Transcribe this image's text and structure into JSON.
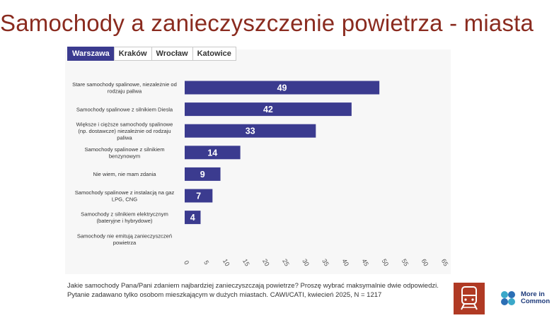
{
  "title": "Samochody a zanieczyszczenie powietrza - miasta",
  "tabs": [
    {
      "label": "Warszawa",
      "active": true
    },
    {
      "label": "Kraków",
      "active": false
    },
    {
      "label": "Wrocław",
      "active": false
    },
    {
      "label": "Katowice",
      "active": false
    }
  ],
  "chart_data": {
    "type": "bar",
    "orientation": "horizontal",
    "categories": [
      [
        "Stare samochody spalinowe, niezależnie od",
        "rodzaju paliwa"
      ],
      [
        "Samochody spalinowe z silnikiem Diesla"
      ],
      [
        "Większe i cięższe samochody spalinowe",
        "(np. dostawcze) niezależnie od rodzaju",
        "paliwa"
      ],
      [
        "Samochody spalinowe z silnikiem",
        "benzynowym"
      ],
      [
        "Nie wiem, nie mam zdania"
      ],
      [
        "Samochody spalinowe z instalacją na gaz",
        "LPG, CNG"
      ],
      [
        "Samochody z silnikiem elektrycznym",
        "(bateryjne i hybrydowe)"
      ],
      [
        "Samochody nie emitują zanieczyszczeń",
        "powietrza"
      ]
    ],
    "values": [
      49,
      42,
      33,
      14,
      9,
      7,
      4,
      0
    ],
    "data_labels": [
      "49",
      "42",
      "33",
      "14",
      "9",
      "7",
      "4",
      ""
    ],
    "xlim": [
      0,
      65
    ],
    "xticks": [
      "0",
      "5",
      "10",
      "15",
      "20",
      "25",
      "30",
      "35",
      "40",
      "45",
      "50",
      "55",
      "60",
      "65"
    ],
    "bar_color": "#3b3b8f",
    "grid": false
  },
  "footer": {
    "question": "Jakie samochody Pana/Pani zdaniem najbardziej zanieczyszczają powietrze? Proszę wybrać maksymalnie dwie odpowiedzi.",
    "note": "Pytanie zadawano tylko osobom mieszkającym w dużych miastach. CAWI/CATI, kwiecień 2025, N = 1217"
  },
  "logos": {
    "train_icon": "train-icon",
    "brand_line1": "More in",
    "brand_line2": "Common"
  },
  "colors": {
    "title": "#8a2b1f",
    "accent": "#3b3b8f",
    "logo_bg": "#b03a24"
  }
}
